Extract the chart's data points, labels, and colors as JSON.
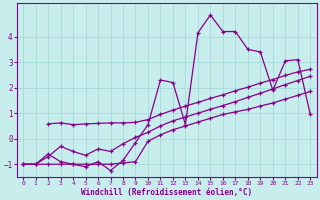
{
  "xlabel": "Windchill (Refroidissement éolien,°C)",
  "bg_color": "#c8eded",
  "line_color": "#880088",
  "grid_color": "#aadddd",
  "xlim": [
    -0.5,
    23.5
  ],
  "ylim": [
    -1.5,
    5.3
  ],
  "yticks": [
    -1,
    0,
    1,
    2,
    3,
    4
  ],
  "xticks": [
    0,
    1,
    2,
    3,
    4,
    5,
    6,
    7,
    8,
    9,
    10,
    11,
    12,
    13,
    14,
    15,
    16,
    17,
    18,
    19,
    20,
    21,
    22,
    23
  ],
  "line1_x": [
    0,
    1,
    2,
    3,
    4,
    5,
    6,
    7,
    8,
    9,
    10,
    11,
    12,
    13,
    14,
    15,
    16,
    17,
    18,
    19,
    20,
    21,
    22,
    23
  ],
  "line1_y": [
    -1.0,
    -1.0,
    -0.6,
    -0.9,
    -1.0,
    -1.1,
    -0.9,
    -1.25,
    -0.85,
    -0.15,
    0.55,
    2.3,
    2.2,
    0.55,
    4.15,
    4.85,
    4.2,
    4.2,
    3.5,
    3.4,
    1.9,
    3.05,
    3.1,
    0.95
  ],
  "line2_x": [
    0,
    1,
    2,
    3,
    4,
    5,
    6,
    7,
    8,
    9,
    10,
    11,
    12,
    13,
    14,
    15,
    16,
    17,
    18,
    19,
    20,
    21,
    22,
    23
  ],
  "line2_y": [
    -1.0,
    -1.0,
    -1.0,
    -1.0,
    -1.0,
    -1.0,
    -1.0,
    -1.0,
    -0.95,
    -0.9,
    -0.1,
    0.15,
    0.35,
    0.5,
    0.65,
    0.8,
    0.95,
    1.05,
    1.15,
    1.28,
    1.4,
    1.55,
    1.7,
    1.85
  ],
  "line3_x": [
    2,
    3,
    4,
    5,
    6,
    7,
    8,
    9,
    10,
    11,
    12,
    13,
    14,
    15,
    16,
    17,
    18,
    19,
    20,
    21,
    22,
    23
  ],
  "line3_y": [
    0.58,
    0.62,
    0.55,
    0.58,
    0.6,
    0.62,
    0.62,
    0.64,
    0.75,
    0.95,
    1.12,
    1.28,
    1.42,
    1.58,
    1.72,
    1.88,
    2.02,
    2.18,
    2.32,
    2.48,
    2.62,
    2.72
  ],
  "line4_x": [
    0,
    1,
    2,
    3,
    4,
    5,
    6,
    7,
    8,
    9,
    10,
    11,
    12,
    13,
    14,
    15,
    16,
    17,
    18,
    19,
    20,
    21,
    22,
    23
  ],
  "line4_y": [
    -1.0,
    -1.0,
    -0.7,
    -0.3,
    -0.5,
    -0.65,
    -0.4,
    -0.5,
    -0.2,
    0.05,
    0.25,
    0.5,
    0.7,
    0.85,
    1.0,
    1.15,
    1.3,
    1.45,
    1.62,
    1.78,
    1.95,
    2.12,
    2.28,
    2.45
  ]
}
